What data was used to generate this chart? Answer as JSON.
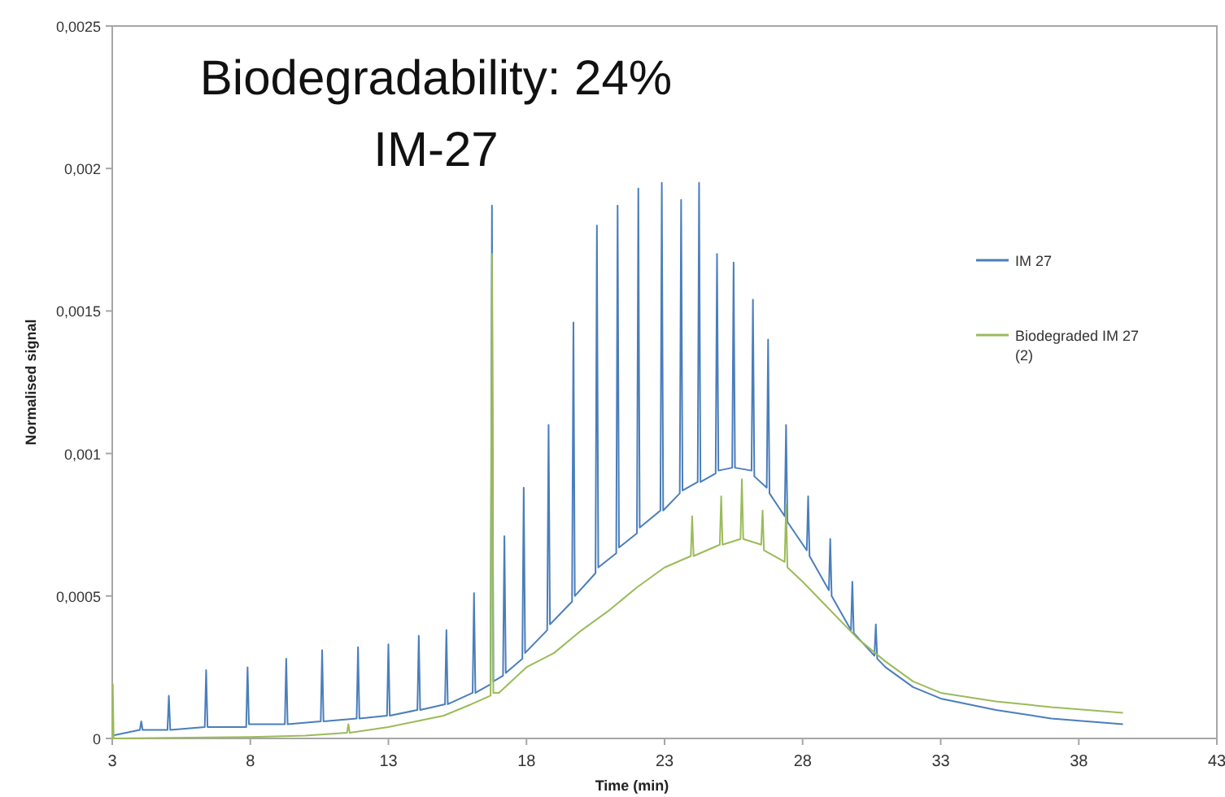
{
  "chart_data": {
    "type": "line",
    "title": "Biodegradability: 24%",
    "subtitle": "IM-27",
    "xlabel": "Time (min)",
    "ylabel": "Normalised signal",
    "xlim": [
      3,
      43
    ],
    "xticks": [
      3,
      8,
      13,
      18,
      23,
      28,
      33,
      38,
      43
    ],
    "ylim": [
      0,
      0.0025
    ],
    "yticks": [
      0,
      {
        "value": 0.0005,
        "label": "0,0005"
      },
      {
        "value": 0.001,
        "label": "0,001"
      },
      {
        "value": 0.0015,
        "label": "0,0015"
      },
      {
        "value": 0.002,
        "label": "0,002"
      },
      {
        "value": 0.0025,
        "label": "0,0025"
      }
    ],
    "grid": false,
    "legend": "right",
    "marker": "none",
    "line_style": "solid",
    "series": [
      {
        "name": "IM 27",
        "color": "#4a7ebb",
        "x": [
          3,
          4,
          4.05,
          4.1,
          5,
          5.05,
          5.1,
          6.35,
          6.4,
          6.45,
          7.85,
          7.9,
          7.95,
          9.25,
          9.3,
          9.35,
          10.55,
          10.6,
          10.65,
          11.85,
          11.9,
          11.95,
          12.95,
          13,
          13.05,
          14.05,
          14.1,
          14.15,
          15.05,
          15.1,
          15.15,
          16.05,
          16.1,
          16.15,
          16.7,
          16.75,
          16.8,
          17.15,
          17.2,
          17.25,
          17.85,
          17.9,
          17.95,
          18.75,
          18.8,
          18.85,
          19.65,
          19.7,
          19.75,
          20.5,
          20.55,
          20.6,
          21.25,
          21.3,
          21.35,
          22,
          22.05,
          22.1,
          22.85,
          22.9,
          22.95,
          23.55,
          23.6,
          23.65,
          24.2,
          24.25,
          24.3,
          24.85,
          24.9,
          24.95,
          25.45,
          25.5,
          25.55,
          26.15,
          26.2,
          26.25,
          26.7,
          26.75,
          26.8,
          27.35,
          27.4,
          27.45,
          28.15,
          28.2,
          28.25,
          28.95,
          29,
          29.05,
          29.75,
          29.8,
          29.85,
          30.6,
          30.65,
          30.7,
          31,
          32,
          33,
          35,
          37,
          39.6
        ],
        "values": [
          1e-05,
          3e-05,
          6e-05,
          3e-05,
          3e-05,
          0.00015,
          3e-05,
          4e-05,
          0.00024,
          4e-05,
          4e-05,
          0.00025,
          5e-05,
          5e-05,
          0.00028,
          5e-05,
          6e-05,
          0.00031,
          6e-05,
          7e-05,
          0.00032,
          7e-05,
          8e-05,
          0.00033,
          8e-05,
          0.0001,
          0.00036,
          0.0001,
          0.00012,
          0.00038,
          0.00012,
          0.00016,
          0.00051,
          0.00016,
          0.00019,
          0.00187,
          0.0002,
          0.00022,
          0.00071,
          0.00023,
          0.00028,
          0.00088,
          0.0003,
          0.00038,
          0.0011,
          0.0004,
          0.00048,
          0.00146,
          0.0005,
          0.00058,
          0.0018,
          0.0006,
          0.00065,
          0.00187,
          0.00067,
          0.00072,
          0.00193,
          0.00074,
          0.0008,
          0.00195,
          0.0008,
          0.00086,
          0.00189,
          0.00087,
          0.0009,
          0.00195,
          0.0009,
          0.00093,
          0.0017,
          0.00094,
          0.00095,
          0.00167,
          0.00095,
          0.00094,
          0.00154,
          0.00092,
          0.00088,
          0.0014,
          0.00086,
          0.00078,
          0.0011,
          0.00076,
          0.00066,
          0.00085,
          0.00064,
          0.00052,
          0.0007,
          0.0005,
          0.00038,
          0.00055,
          0.00037,
          0.00029,
          0.0004,
          0.00028,
          0.00025,
          0.00018,
          0.00014,
          0.0001,
          7e-05,
          5e-05
        ]
      },
      {
        "name": "Biodegraded IM 27 (2)",
        "color": "#9bbb59",
        "x": [
          3,
          3.02,
          3.05,
          8,
          10,
          11.5,
          11.55,
          11.6,
          13,
          14,
          15,
          16,
          16.7,
          16.75,
          16.8,
          17,
          18,
          19,
          20,
          21,
          22,
          23,
          23.95,
          24,
          24.05,
          25,
          25.05,
          25.1,
          25.75,
          25.8,
          25.85,
          26.5,
          26.55,
          26.6,
          27.35,
          27.4,
          27.45,
          28,
          29,
          30,
          31,
          32,
          33,
          35,
          37,
          39.6
        ],
        "values": [
          0,
          0.00019,
          0,
          5e-06,
          1e-05,
          2e-05,
          5e-05,
          2e-05,
          4e-05,
          6e-05,
          8e-05,
          0.00012,
          0.00015,
          0.0017,
          0.00016,
          0.00016,
          0.00025,
          0.0003,
          0.00038,
          0.00045,
          0.00053,
          0.0006,
          0.00064,
          0.00078,
          0.00064,
          0.00068,
          0.00085,
          0.00068,
          0.0007,
          0.00091,
          0.0007,
          0.00068,
          0.0008,
          0.00066,
          0.00062,
          0.00082,
          0.0006,
          0.00055,
          0.00045,
          0.00035,
          0.00027,
          0.0002,
          0.00016,
          0.00013,
          0.00011,
          9e-05
        ]
      }
    ]
  }
}
